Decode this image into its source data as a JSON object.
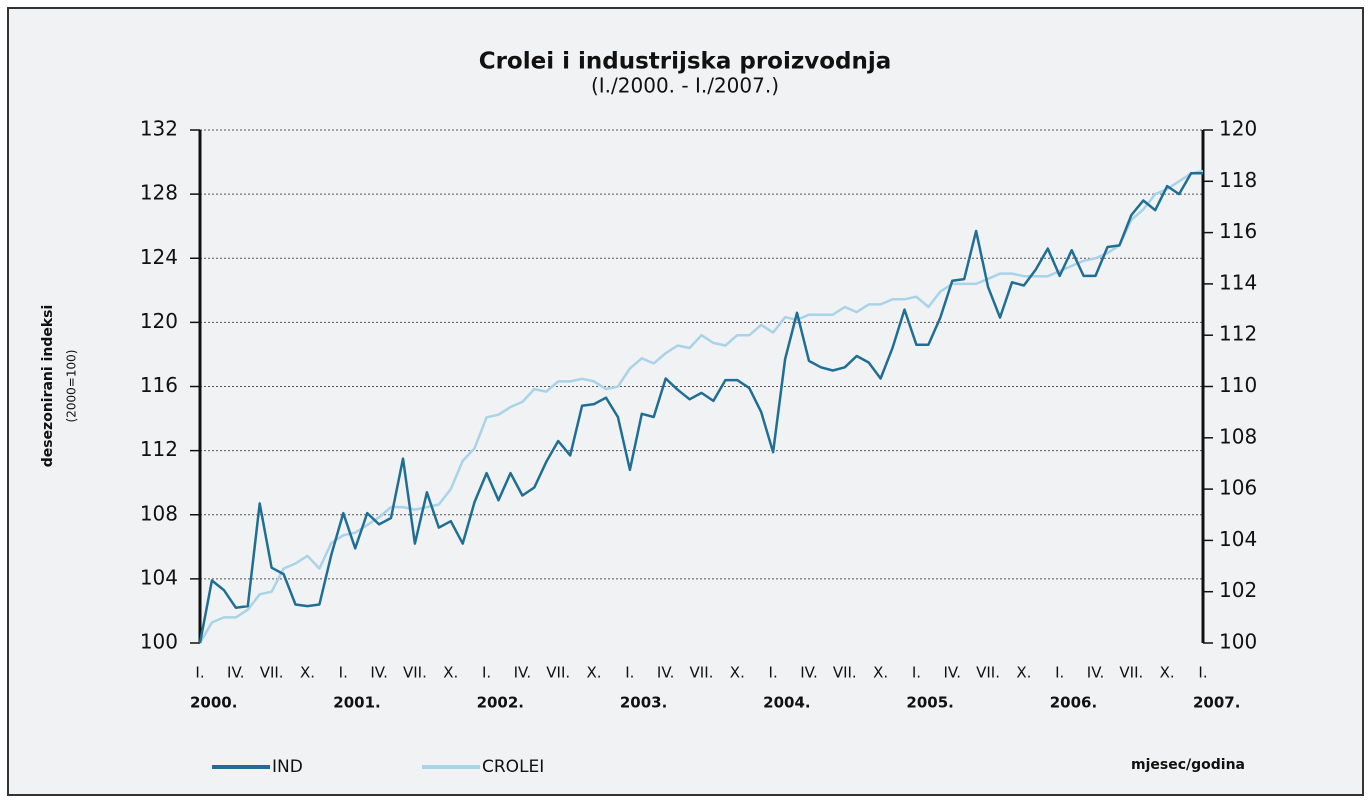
{
  "chart_data": {
    "type": "line",
    "title": "Crolei i industrijska proizvodnja",
    "subtitle": "(I./2000. - I./2007.)",
    "y_label": "desezonirani indeksi",
    "y_label_note": "(2000=100)",
    "x_label": "mjesec/godina",
    "categories": [
      "I.",
      null,
      null,
      "IV.",
      null,
      null,
      "VII.",
      null,
      null,
      "X.",
      null,
      null,
      "I.",
      null,
      null,
      "IV.",
      null,
      null,
      "VII.",
      null,
      null,
      "X.",
      null,
      null,
      "I.",
      null,
      null,
      "IV.",
      null,
      null,
      "VII.",
      null,
      null,
      "X.",
      null,
      null,
      "I.",
      null,
      null,
      "IV.",
      null,
      null,
      "VII.",
      null,
      null,
      "X.",
      null,
      null,
      "I.",
      null,
      null,
      "IV.",
      null,
      null,
      "VII.",
      null,
      null,
      "X.",
      null,
      null,
      "I.",
      null,
      null,
      "IV.",
      null,
      null,
      "VII.",
      null,
      null,
      "X.",
      null,
      null,
      "I.",
      null,
      null,
      "IV.",
      null,
      null,
      "VII.",
      null,
      null,
      "X.",
      null,
      null,
      "I."
    ],
    "years": [
      "2000.",
      "2001.",
      "2002.",
      "2003.",
      "2004.",
      "2005.",
      "2006.",
      "2007."
    ],
    "series": [
      {
        "name": "IND",
        "color": "#1f6e93",
        "axis": "y",
        "values": [
          100,
          103.9,
          103.3,
          102.2,
          102.3,
          108.7,
          104.7,
          104.3,
          102.4,
          102.3,
          102.4,
          105.5,
          108.1,
          105.9,
          108.1,
          107.4,
          107.8,
          111.5,
          106.2,
          109.4,
          107.2,
          107.6,
          106.2,
          108.8,
          110.6,
          108.9,
          110.6,
          109.2,
          109.7,
          111.3,
          112.6,
          111.7,
          114.8,
          114.9,
          115.3,
          114.1,
          110.8,
          114.3,
          114.1,
          116.5,
          115.8,
          115.2,
          115.6,
          115.1,
          116.4,
          116.4,
          115.9,
          114.4,
          111.9,
          117.7,
          120.6,
          117.6,
          117.2,
          117.0,
          117.2,
          117.9,
          117.5,
          116.5,
          118.4,
          120.8,
          118.6,
          118.6,
          120.3,
          122.6,
          122.7,
          125.7,
          122.2,
          120.3,
          122.5,
          122.3,
          123.3,
          124.6,
          122.9,
          124.5,
          122.9,
          122.9,
          124.7,
          124.8,
          126.7,
          127.6,
          127.0,
          128.5,
          128.0,
          129.3,
          129.3
        ]
      },
      {
        "name": "CROLEI",
        "color": "#a8d3e8",
        "axis": "y2",
        "values": [
          100,
          100.8,
          101.0,
          101.0,
          101.3,
          101.9,
          102.0,
          102.9,
          103.1,
          103.4,
          102.9,
          103.9,
          104.2,
          104.3,
          104.6,
          104.9,
          105.3,
          105.3,
          105.2,
          105.3,
          105.4,
          106.0,
          107.1,
          107.6,
          108.8,
          108.9,
          109.2,
          109.4,
          109.9,
          109.8,
          110.2,
          110.2,
          110.3,
          110.2,
          109.9,
          110.0,
          110.7,
          111.1,
          110.9,
          111.3,
          111.6,
          111.5,
          112.0,
          111.7,
          111.6,
          112.0,
          112.0,
          112.4,
          112.1,
          112.7,
          112.6,
          112.8,
          112.8,
          112.8,
          113.1,
          112.9,
          113.2,
          113.2,
          113.4,
          113.4,
          113.5,
          113.1,
          113.7,
          114.0,
          114.0,
          114.0,
          114.2,
          114.4,
          114.4,
          114.3,
          114.3,
          114.3,
          114.5,
          114.7,
          114.9,
          115.0,
          115.2,
          115.5,
          116.5,
          116.9,
          117.5,
          117.7,
          118.0,
          118.3,
          118.4
        ]
      }
    ],
    "ylim": [
      100,
      132
    ],
    "yticks": [
      100,
      104,
      108,
      112,
      116,
      120,
      124,
      128,
      132
    ],
    "y2lim": [
      100,
      120
    ],
    "y2ticks": [
      100,
      102,
      104,
      106,
      108,
      110,
      112,
      114,
      116,
      118,
      120
    ],
    "grid": true,
    "legend": "bottom-left"
  }
}
